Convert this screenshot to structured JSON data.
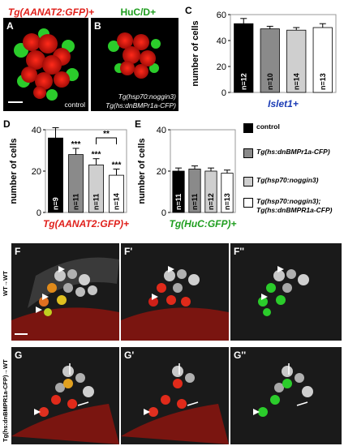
{
  "top_title": {
    "red": "Tg(AANAT2:GFP)+",
    "green": "HuC/D+"
  },
  "panels": {
    "A": {
      "label": "A",
      "caption": "control"
    },
    "B": {
      "label": "B",
      "caption_line1": "Tg(hsp70:noggin3)",
      "caption_line2": "Tg(hs:dnBMPr1a-CFP)"
    },
    "F": "F",
    "F1": "F'",
    "F2": "F''",
    "G": "G",
    "G1": "G'",
    "G2": "G''"
  },
  "side_labels": {
    "row_F": "WT→WT",
    "row_G": "Tg(hs:dnBMPR1a-CFP)→WT"
  },
  "legend": [
    {
      "label": "control",
      "color": "#000000"
    },
    {
      "label": "Tg(hs:dnBMPr1a-CFP)",
      "color": "#8a8a8a"
    },
    {
      "label": "Tg(hsp70:noggin3)",
      "color": "#cfcfcf"
    },
    {
      "label": "Tg(hsp70:noggin3); Tg(hs:dnBMPR1a-CFP)",
      "color": "#ffffff"
    }
  ],
  "chart_data": [
    {
      "id": "C",
      "type": "bar",
      "label": "C",
      "xlabel": "Islet1+",
      "ylabel": "number of cells",
      "ylim": [
        0,
        60
      ],
      "yticks": [
        0,
        20,
        40,
        60
      ],
      "values": [
        53,
        49,
        48,
        50
      ],
      "errors": [
        4,
        2,
        2,
        3
      ],
      "n_labels": [
        "n=12",
        "n=10",
        "n=14",
        "n=13"
      ],
      "colors": [
        "#000000",
        "#8a8a8a",
        "#cfcfcf",
        "#ffffff"
      ],
      "xlabel_color": "#1a3bb5"
    },
    {
      "id": "D",
      "type": "bar",
      "label": "D",
      "xlabel": "Tg(AANAT2:GFP)+",
      "ylabel": "number of cells",
      "ylim": [
        0,
        40
      ],
      "yticks": [
        0,
        20,
        40
      ],
      "values": [
        36,
        28,
        23,
        18
      ],
      "errors": [
        5,
        3,
        3,
        3
      ],
      "n_labels": [
        "n=9",
        "n=11",
        "n=11",
        "n=14"
      ],
      "stars": [
        "",
        "***",
        "***",
        "***"
      ],
      "bracket": {
        "from": 2,
        "to": 3,
        "label": "**"
      },
      "colors": [
        "#000000",
        "#8a8a8a",
        "#cfcfcf",
        "#ffffff"
      ],
      "xlabel_color": "#e0201b"
    },
    {
      "id": "E",
      "type": "bar",
      "label": "E",
      "xlabel": "Tg(HuC:GFP)+",
      "ylabel": "number of cells",
      "ylim": [
        0,
        40
      ],
      "yticks": [
        0,
        20,
        40
      ],
      "values": [
        20,
        21,
        20,
        19
      ],
      "errors": [
        1.5,
        1.5,
        1.5,
        1.5
      ],
      "n_labels": [
        "n=11",
        "n=11",
        "n=12",
        "n=13"
      ],
      "colors": [
        "#000000",
        "#8a8a8a",
        "#cfcfcf",
        "#ffffff"
      ],
      "xlabel_color": "#1f9e1f"
    }
  ]
}
